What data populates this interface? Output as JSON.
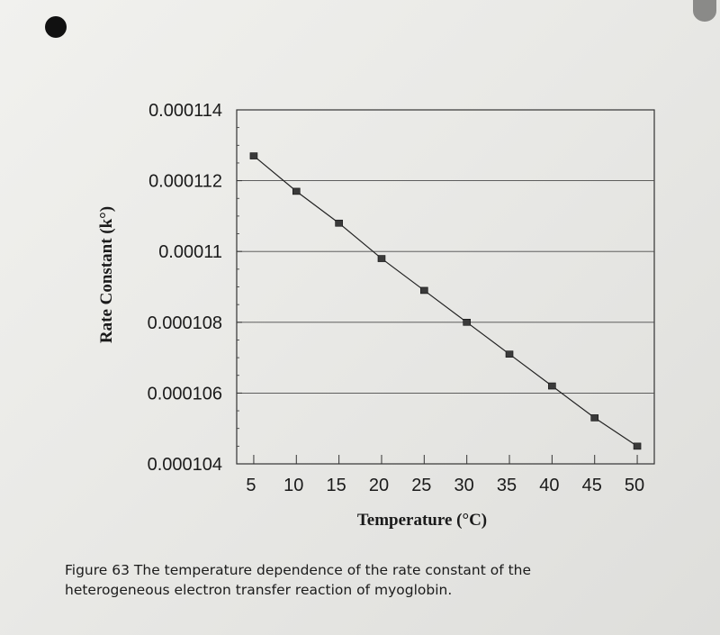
{
  "caption": "Figure 63 The temperature dependence of the rate constant of the heterogeneous electron transfer reaction of myoglobin.",
  "chart_data": {
    "type": "line",
    "title": "",
    "xlabel": "Temperature (°C)",
    "ylabel": "Rate Constant (k°)",
    "x": [
      5,
      10,
      15,
      20,
      25,
      30,
      35,
      40,
      45,
      50
    ],
    "series": [
      {
        "values": [
          0.0001127,
          0.0001117,
          0.0001108,
          0.0001098,
          0.0001089,
          0.000108,
          0.0001071,
          0.0001062,
          0.0001053,
          0.0001045
        ]
      }
    ],
    "xticks": [
      "5",
      "10",
      "15",
      "20",
      "25",
      "30",
      "35",
      "40",
      "45",
      "50"
    ],
    "yticks": [
      "0.000104",
      "0.000106",
      "0.000108",
      "0.00011",
      "0.000112",
      "0.000114"
    ],
    "ytick_values": [
      0.000104,
      0.000106,
      0.000108,
      0.00011,
      0.000112,
      0.000114
    ],
    "ylim": [
      0.000104,
      0.000114
    ],
    "xlim": [
      3,
      52
    ],
    "grid": "horizontal",
    "legend": "none",
    "line_color": "#222222",
    "marker_color": "#3a3a3a"
  }
}
